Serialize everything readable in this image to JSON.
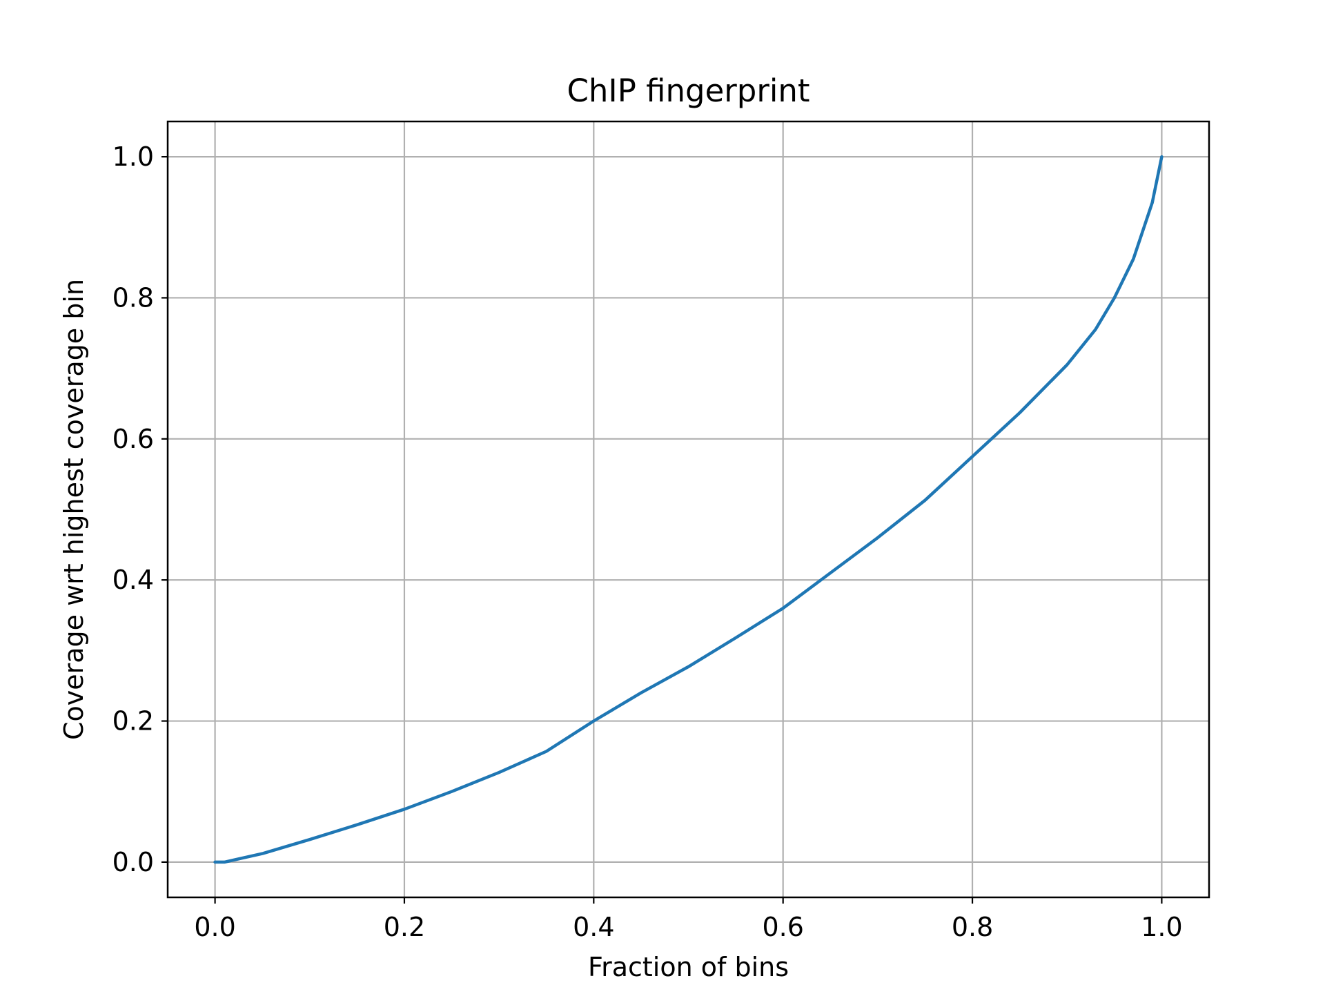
{
  "chart_data": {
    "type": "line",
    "title": "ChIP fingerprint",
    "xlabel": "Fraction of bins",
    "ylabel": "Coverage wrt highest coverage bin",
    "xlim": [
      -0.05,
      1.05
    ],
    "ylim": [
      -0.05,
      1.05
    ],
    "xticks": [
      0.0,
      0.2,
      0.4,
      0.6,
      0.8,
      1.0
    ],
    "xtick_labels": [
      "0.0",
      "0.2",
      "0.4",
      "0.6",
      "0.8",
      "1.0"
    ],
    "yticks": [
      0.0,
      0.2,
      0.4,
      0.6,
      0.8,
      1.0
    ],
    "ytick_labels": [
      "0.0",
      "0.2",
      "0.4",
      "0.6",
      "0.8",
      "1.0"
    ],
    "grid": true,
    "legend": "none",
    "series": [
      {
        "color": "#1f77b4",
        "x": [
          0.0,
          0.01,
          0.02,
          0.05,
          0.1,
          0.15,
          0.2,
          0.25,
          0.3,
          0.35,
          0.4,
          0.45,
          0.5,
          0.55,
          0.6,
          0.65,
          0.7,
          0.75,
          0.8,
          0.85,
          0.9,
          0.93,
          0.95,
          0.97,
          0.99,
          1.0
        ],
        "y": [
          0.0,
          0.0,
          0.003,
          0.012,
          0.032,
          0.053,
          0.075,
          0.1,
          0.127,
          0.157,
          0.2,
          0.24,
          0.277,
          0.318,
          0.36,
          0.41,
          0.46,
          0.513,
          0.575,
          0.637,
          0.705,
          0.755,
          0.8,
          0.855,
          0.935,
          1.0
        ]
      }
    ]
  }
}
